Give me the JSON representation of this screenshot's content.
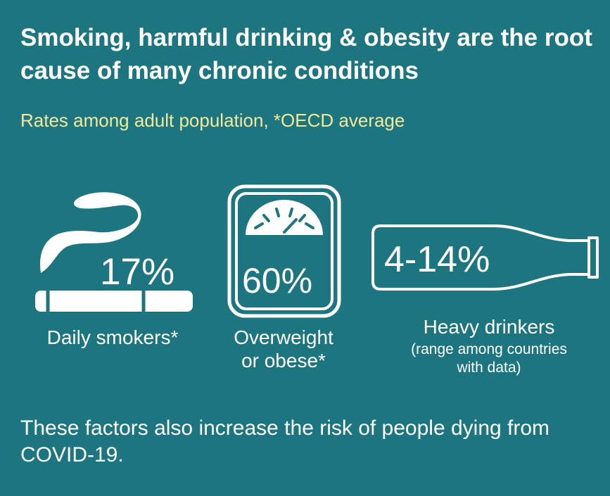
{
  "header": {
    "title": "Smoking, harmful drinking & obesity are the root cause of many chronic conditions",
    "subtitle": "Rates among adult population, *OECD average"
  },
  "stats": {
    "smokers": {
      "value": "17%",
      "label": "Daily smokers*",
      "icon": "cigarette-icon"
    },
    "overweight": {
      "value": "60%",
      "label_line1": "Overweight",
      "label_line2": "or obese*",
      "icon": "scale-icon"
    },
    "drinkers": {
      "value": "4-14%",
      "label": "Heavy drinkers",
      "note_line1": "(range among countries",
      "note_line2": "with data)",
      "icon": "bottle-icon"
    }
  },
  "footer": {
    "text": "These factors also increase the risk of people dying from COVID-19."
  },
  "colors": {
    "background": "#1d7580",
    "accent": "#f3e99a",
    "foreground": "#ffffff"
  }
}
